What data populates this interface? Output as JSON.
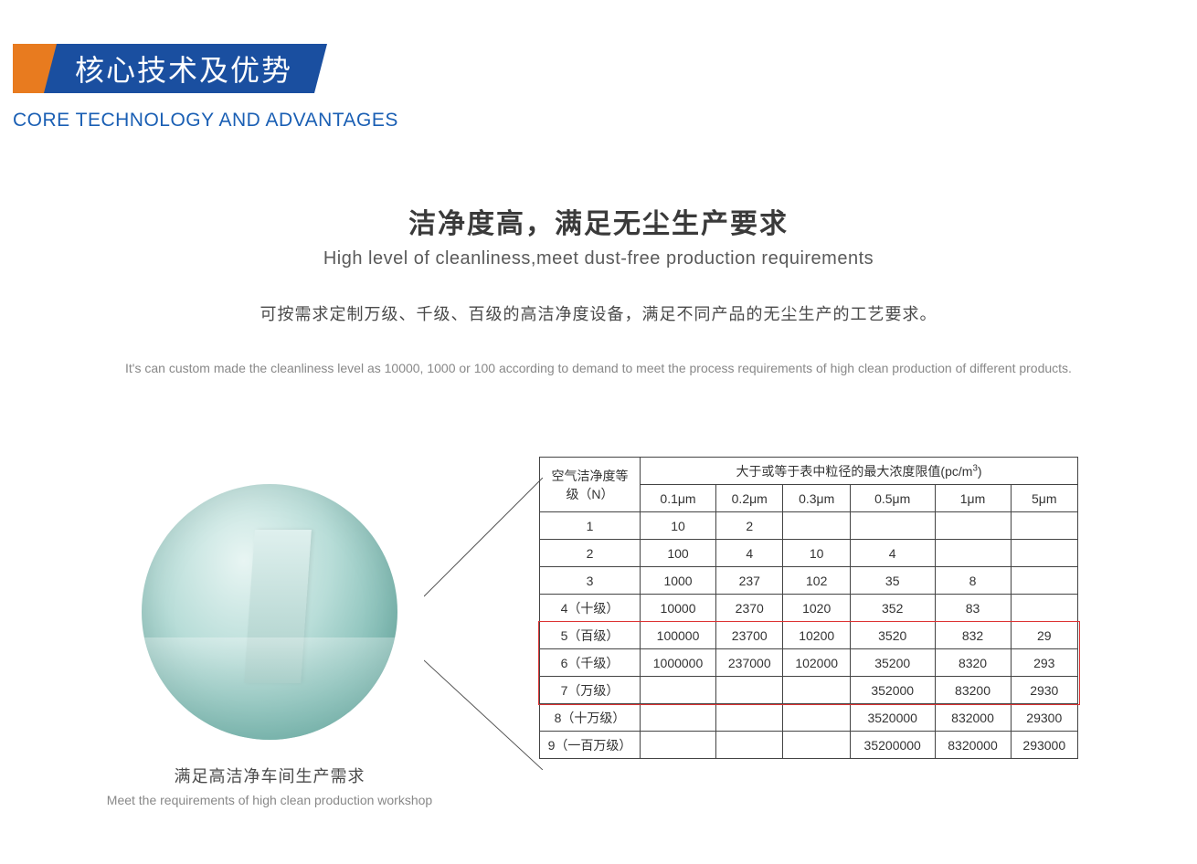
{
  "header": {
    "title_cn": "核心技术及优势",
    "title_en": "CORE TECHNOLOGY AND ADVANTAGES",
    "orange_color": "#e87b1f",
    "blue_color": "#1a4fa0"
  },
  "main": {
    "title_cn": "洁净度高，满足无尘生产要求",
    "title_en": "High level of cleanliness,meet dust-free production requirements",
    "desc_cn": "可按需求定制万级、千级、百级的高洁净度设备，满足不同产品的无尘生产的工艺要求。",
    "desc_en": "It's can custom made the cleanliness level as 10000, 1000 or 100 according to demand to meet the process requirements of high clean production of different products."
  },
  "image": {
    "caption_cn": "满足高洁净车间生产需求",
    "caption_en": "Meet the requirements of high clean production workshop"
  },
  "table": {
    "header_level": "空气洁净度等级（N）",
    "header_main": "大于或等于表中粒径的最大浓度限值(pc/m³)",
    "columns": [
      "0.1μm",
      "0.2μm",
      "0.3μm",
      "0.5μm",
      "1μm",
      "5μm"
    ],
    "rows": [
      {
        "level": "1",
        "values": [
          "10",
          "2",
          "",
          "",
          "",
          ""
        ]
      },
      {
        "level": "2",
        "values": [
          "100",
          "4",
          "10",
          "4",
          "",
          ""
        ]
      },
      {
        "level": "3",
        "values": [
          "1000",
          "237",
          "102",
          "35",
          "8",
          ""
        ]
      },
      {
        "level": "4（十级）",
        "values": [
          "10000",
          "2370",
          "1020",
          "352",
          "83",
          ""
        ]
      },
      {
        "level": "5（百级）",
        "values": [
          "100000",
          "23700",
          "10200",
          "3520",
          "832",
          "29"
        ]
      },
      {
        "level": "6（千级）",
        "values": [
          "1000000",
          "237000",
          "102000",
          "35200",
          "8320",
          "293"
        ]
      },
      {
        "level": "7（万级）",
        "values": [
          "",
          "",
          "",
          "352000",
          "83200",
          "2930"
        ]
      },
      {
        "level": "8（十万级）",
        "values": [
          "",
          "",
          "",
          "3520000",
          "832000",
          "29300"
        ]
      },
      {
        "level": "9（一百万级）",
        "values": [
          "",
          "",
          "",
          "35200000",
          "8320000",
          "293000"
        ]
      }
    ],
    "highlight_rows": {
      "start": 4,
      "end": 6
    },
    "highlight_color": "#d33",
    "border_color": "#444"
  }
}
